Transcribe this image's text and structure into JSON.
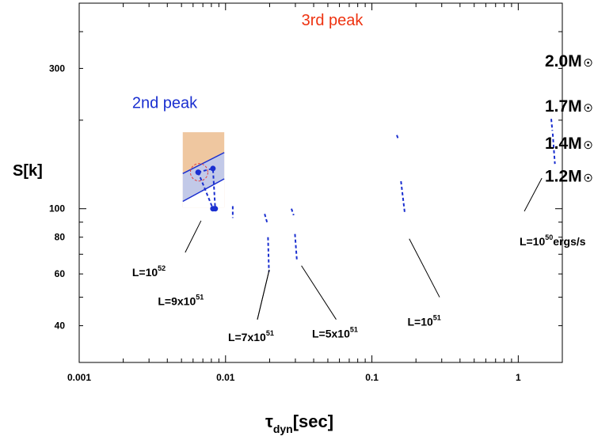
{
  "chart_data": {
    "type": "line",
    "xscale": "log",
    "yscale": "log",
    "xlim": [
      0.001,
      2.0
    ],
    "ylim": [
      30,
      500
    ],
    "x_ticks": [
      {
        "value": 0.001,
        "label": "0.001"
      },
      {
        "value": 0.01,
        "label": "0.01"
      },
      {
        "value": 0.1,
        "label": "0.1"
      },
      {
        "value": 1,
        "label": "1"
      }
    ],
    "y_ticks": [
      {
        "value": 40,
        "label": "40"
      },
      {
        "value": 60,
        "label": "60"
      },
      {
        "value": 80,
        "label": "80"
      },
      {
        "value": 100,
        "label": "100"
      },
      {
        "value": 300,
        "label": "300"
      }
    ],
    "ylabel": "S[k]",
    "xlabel": {
      "main": "τ",
      "sub": "dyn",
      "tail": "[sec]"
    },
    "peaks": [
      {
        "label": "2nd peak",
        "x": 0.0023,
        "y": 220,
        "color": "#1a2fd0"
      },
      {
        "label": "3rd peak",
        "x": 0.033,
        "y": 420,
        "color": "#ee3311"
      }
    ],
    "mass_labels": [
      {
        "label": "2.0M",
        "y": 320
      },
      {
        "label": "1.7M",
        "y": 225
      },
      {
        "label": "1.4M",
        "y": 168
      },
      {
        "label": "1.2M",
        "y": 130
      }
    ],
    "series": [
      {
        "x": [
          0.0065,
          0.0082,
          0.0085
        ],
        "y": [
          133,
          137,
          100
        ],
        "markers": true
      },
      {
        "x": [
          0.0065,
          0.0082
        ],
        "y": [
          133,
          100
        ],
        "markers": true
      },
      {
        "x": [
          0.0112,
          0.0112
        ],
        "y": [
          102,
          93
        ]
      },
      {
        "x": [
          0.0185,
          0.0192
        ],
        "y": [
          96,
          90
        ]
      },
      {
        "x": [
          0.0195,
          0.0198
        ],
        "y": [
          80,
          61
        ]
      },
      {
        "x": [
          0.0282,
          0.0292
        ],
        "y": [
          100,
          95
        ]
      },
      {
        "x": [
          0.0298,
          0.0307
        ],
        "y": [
          82,
          67
        ]
      },
      {
        "x": [
          0.148,
          0.151
        ],
        "y": [
          178,
          173
        ]
      },
      {
        "x": [
          0.158,
          0.168
        ],
        "y": [
          124,
          96
        ]
      },
      {
        "x": [
          1.68,
          1.71
        ],
        "y": [
          202,
          184
        ]
      },
      {
        "x": [
          1.72,
          1.78
        ],
        "y": [
          180,
          142
        ]
      }
    ],
    "luminosity_labels": [
      {
        "base": "L=10",
        "exp": "52",
        "tail": "",
        "text_x": 0.0023,
        "text_y": 59,
        "line": [
          [
            0.0053,
            71
          ],
          [
            0.0068,
            91
          ]
        ]
      },
      {
        "base": "L=9x10",
        "exp": "51",
        "tail": "",
        "text_x": 0.00345,
        "text_y": 47,
        "line": [
          [
            0.0165,
            42
          ],
          [
            0.0199,
            62
          ]
        ]
      },
      {
        "base": "L=7x10",
        "exp": "51",
        "tail": "",
        "text_x": 0.0104,
        "text_y": 35.5,
        "line": [
          [
            0.0165,
            42
          ],
          [
            0.0199,
            62
          ]
        ]
      },
      {
        "base": "L=5x10",
        "exp": "51",
        "tail": "",
        "text_x": 0.039,
        "text_y": 36.5,
        "line": [
          [
            0.057,
            42
          ],
          [
            0.033,
            64
          ]
        ]
      },
      {
        "base": "L=10",
        "exp": "51",
        "tail": "",
        "text_x": 0.175,
        "text_y": 40,
        "line": [
          [
            0.29,
            50
          ],
          [
            0.18,
            79
          ]
        ]
      },
      {
        "base": "L=10",
        "exp": "50",
        "tail": "ergs/s",
        "text_x": 1.02,
        "text_y": 75,
        "line": [
          [
            1.1,
            98
          ],
          [
            1.45,
            127
          ]
        ]
      }
    ],
    "inset": {
      "x_range": [
        0.0051,
        0.0098
      ],
      "y_range": [
        101,
        182
      ],
      "fill_top": "#efc7a0",
      "fill_band": "#c2c9e8",
      "line_color": "#1a2fd0",
      "circle_color": "#e04040"
    }
  }
}
